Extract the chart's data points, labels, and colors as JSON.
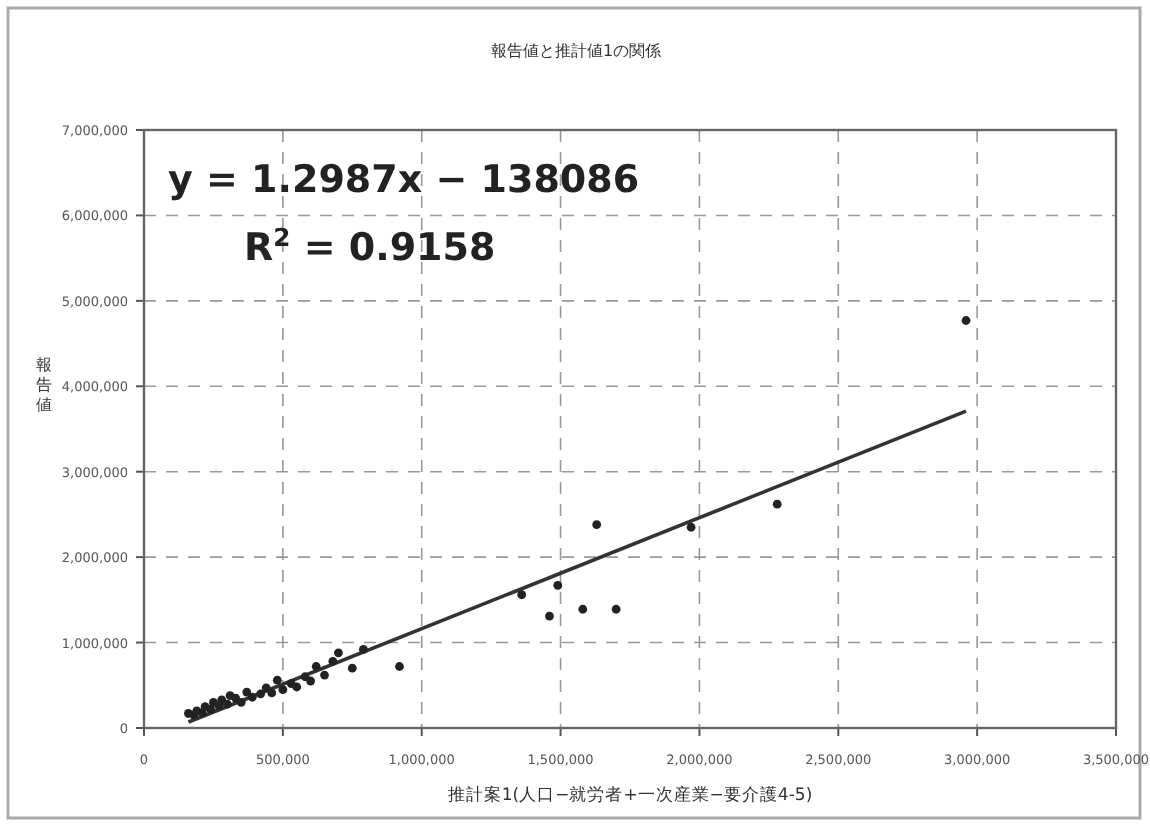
{
  "chart_data": {
    "type": "scatter",
    "title": "報告値と推計値1の関係",
    "xlabel": "推計案1(人口−就労者+一次産業−要介護4-5)",
    "ylabel": "報告値",
    "annotations": [
      "y = 1.2987x − 138086",
      "R$^{2}$ = 0.9158"
    ],
    "xlim": [
      0,
      3500000
    ],
    "ylim": [
      0,
      7000000
    ],
    "xticks": [
      0,
      {
        "value": 500000,
        "label": "500,000"
      },
      {
        "value": 1000000,
        "label": "1,000,000"
      },
      {
        "value": 1500000,
        "label": "1,500,000"
      },
      {
        "value": 2000000,
        "label": "2,000,000"
      },
      {
        "value": 2500000,
        "label": "2,500,000"
      },
      {
        "value": 3000000,
        "label": "3,000,000"
      },
      {
        "value": 3500000,
        "label": "3,500,000"
      }
    ],
    "yticks": [
      0,
      {
        "value": 1000000,
        "label": "1,000,000"
      },
      {
        "value": 2000000,
        "label": "2,000,000"
      },
      {
        "value": 3000000,
        "label": "3,000,000"
      },
      {
        "value": 4000000,
        "label": "4,000,000"
      },
      {
        "value": 5000000,
        "label": "5,000,000"
      },
      {
        "value": 6000000,
        "label": "6,000,000"
      },
      {
        "value": 7000000,
        "label": "7,000,000"
      }
    ],
    "grid": true,
    "series": [
      {
        "marker": "circle",
        "color": "#222222",
        "x": [
          160000,
          180000,
          190000,
          210000,
          220000,
          240000,
          250000,
          270000,
          280000,
          300000,
          310000,
          330000,
          350000,
          370000,
          390000,
          420000,
          440000,
          460000,
          480000,
          500000,
          530000,
          550000,
          580000,
          600000,
          620000,
          650000,
          680000,
          700000,
          750000,
          790000,
          920000,
          1360000,
          1460000,
          1490000,
          1580000,
          1630000,
          1700000,
          1970000,
          2280000,
          2960000
        ],
        "values": [
          170000,
          150000,
          200000,
          180000,
          250000,
          220000,
          300000,
          260000,
          330000,
          280000,
          380000,
          350000,
          300000,
          420000,
          360000,
          400000,
          470000,
          410000,
          560000,
          450000,
          520000,
          480000,
          600000,
          550000,
          720000,
          620000,
          780000,
          880000,
          700000,
          920000,
          720000,
          1560000,
          1310000,
          1670000,
          1390000,
          2380000,
          1390000,
          2350000,
          2620000,
          4770000
        ]
      },
      {
        "type": "line",
        "marker": "none",
        "color": "#333333",
        "x": [
          160000,
          2960000
        ],
        "values": [
          70000,
          3710000
        ]
      }
    ]
  }
}
